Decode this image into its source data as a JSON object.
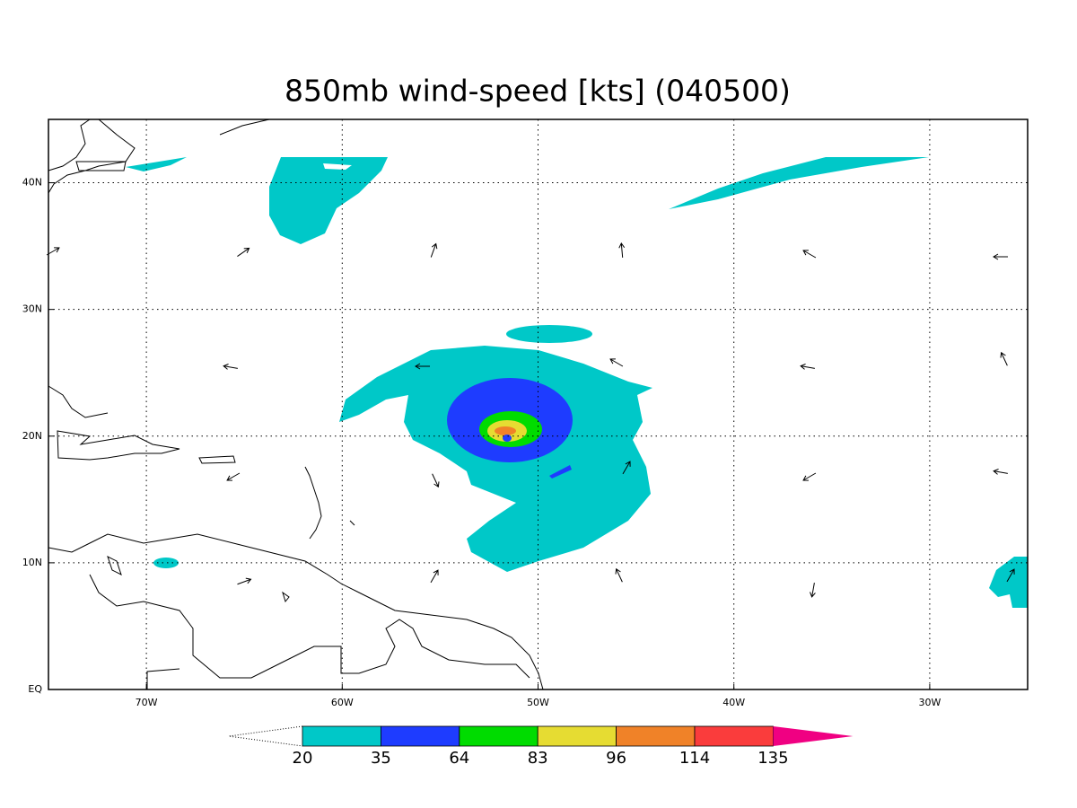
{
  "chart_data": {
    "type": "contour-map",
    "title": "850mb wind-speed [kts] (040500)",
    "xlim": [
      -75,
      -25
    ],
    "ylim": [
      0,
      45
    ],
    "xticks": [
      {
        "value": -70,
        "label": "70W"
      },
      {
        "value": -60,
        "label": "60W"
      },
      {
        "value": -50,
        "label": "50W"
      },
      {
        "value": -40,
        "label": "40W"
      },
      {
        "value": -30,
        "label": "30W"
      }
    ],
    "yticks": [
      {
        "value": 0,
        "label": "EQ"
      },
      {
        "value": 10,
        "label": "10N"
      },
      {
        "value": 20,
        "label": "20N"
      },
      {
        "value": 30,
        "label": "30N"
      },
      {
        "value": 40,
        "label": "40N"
      }
    ],
    "grid": true,
    "colorbar": {
      "levels": [
        20,
        35,
        64,
        83,
        96,
        114,
        135
      ],
      "colors": [
        "#00c8c8",
        "#1e3cff",
        "#00dc00",
        "#e6dc32",
        "#f08228",
        "#fa3c3c"
      ],
      "above_color": "#f00082"
    }
  }
}
